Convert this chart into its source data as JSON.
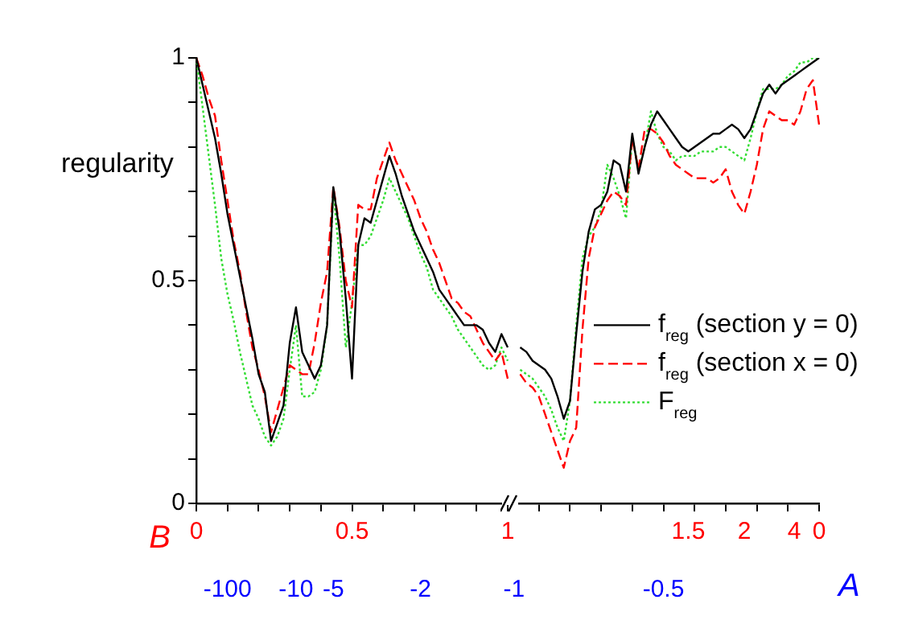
{
  "chart_data": {
    "type": "line",
    "ylabel": "regularity",
    "xlabel": "B",
    "x2label": "A",
    "ylim": [
      0,
      1
    ],
    "categories": [
      "0",
      null,
      null,
      null,
      null,
      "-100",
      null,
      null,
      null,
      null,
      null,
      null,
      null,
      null,
      null,
      null,
      "-10",
      null,
      null,
      null,
      null,
      null,
      "-5",
      null,
      null,
      "0.5",
      null,
      null,
      null,
      null,
      null,
      null,
      null,
      null,
      null,
      null,
      "-2",
      null,
      null,
      null,
      null,
      null,
      null,
      null,
      null,
      null,
      null,
      null,
      null,
      null,
      "1",
      "-1",
      null,
      null,
      null,
      null,
      null,
      null,
      null,
      null,
      null,
      null,
      null,
      null,
      null,
      null,
      null,
      null,
      null,
      null,
      null,
      null,
      null,
      null,
      null,
      "-0.5",
      null,
      null,
      null,
      "1.5",
      null,
      null,
      null,
      null,
      null,
      null,
      null,
      null,
      "2",
      null,
      null,
      null,
      null,
      null,
      null,
      null,
      "4",
      null,
      null,
      null,
      "0"
    ],
    "yticks": [
      0,
      {
        "value": 0.1,
        "label": null
      },
      {
        "value": 0.2,
        "label": null
      },
      {
        "value": 0.3,
        "label": null
      },
      {
        "value": 0.4,
        "label": null
      },
      0.5,
      {
        "value": 0.6,
        "label": null
      },
      {
        "value": 0.7,
        "label": null
      },
      {
        "value": 0.8,
        "label": null
      },
      {
        "value": 0.9,
        "label": null
      },
      1
    ],
    "legend": "bottom right",
    "marker": "none",
    "series": [
      {
        "name": "f$_{reg}$ (section y = 0)",
        "color": "#000000",
        "line_style": "solid",
        "values": [
          1,
          0.94,
          0.88,
          0.82,
          0.74,
          0.65,
          0.58,
          0.51,
          0.44,
          0.37,
          0.29,
          0.25,
          0.14,
          0.18,
          0.22,
          0.36,
          0.44,
          0.34,
          0.31,
          0.28,
          0.31,
          0.4,
          0.71,
          0.61,
          0.46,
          0.28,
          0.58,
          0.64,
          0.63,
          0.68,
          0.73,
          0.78,
          0.74,
          0.69,
          0.65,
          0.61,
          0.58,
          0.55,
          0.52,
          0.48,
          0.46,
          0.44,
          0.42,
          0.4,
          0.4,
          0.4,
          0.39,
          0.36,
          0.34,
          0.38,
          0.35,
          null,
          0.35,
          0.34,
          0.32,
          0.31,
          0.3,
          0.28,
          0.24,
          0.19,
          0.23,
          0.38,
          0.52,
          0.61,
          0.66,
          0.67,
          0.7,
          0.77,
          0.76,
          0.7,
          0.83,
          0.74,
          0.8,
          0.85,
          0.88,
          0.86,
          0.84,
          0.82,
          0.8,
          0.79,
          0.8,
          0.81,
          0.82,
          0.83,
          0.83,
          0.84,
          0.85,
          0.84,
          0.82,
          0.84,
          0.88,
          0.92,
          0.94,
          0.92,
          0.94,
          0.95,
          0.96,
          0.97,
          0.98,
          0.99,
          1.0
        ]
      },
      {
        "name": "f$_{reg}$ (section x = 0)",
        "color": "#ff0000",
        "line_style": "dashed",
        "values": [
          1,
          0.96,
          0.91,
          0.87,
          0.77,
          0.68,
          0.59,
          0.52,
          0.43,
          0.35,
          0.3,
          0.24,
          0.16,
          0.21,
          0.26,
          0.31,
          0.3,
          0.29,
          0.29,
          0.36,
          0.45,
          0.52,
          0.71,
          0.62,
          0.5,
          0.44,
          0.67,
          0.66,
          0.66,
          0.73,
          0.77,
          0.81,
          0.77,
          0.74,
          0.71,
          0.68,
          0.64,
          0.61,
          0.57,
          0.54,
          0.5,
          0.46,
          0.45,
          0.43,
          0.42,
          0.39,
          0.36,
          0.34,
          0.32,
          0.34,
          0.28,
          null,
          0.29,
          0.27,
          0.26,
          0.24,
          0.2,
          0.16,
          0.12,
          0.08,
          0.14,
          0.17,
          0.39,
          0.55,
          0.62,
          0.65,
          0.68,
          0.7,
          0.69,
          0.67,
          0.82,
          0.75,
          0.84,
          0.84,
          0.83,
          0.81,
          0.78,
          0.76,
          0.75,
          0.74,
          0.73,
          0.73,
          0.73,
          0.72,
          0.73,
          0.75,
          0.7,
          0.67,
          0.65,
          0.7,
          0.76,
          0.84,
          0.88,
          0.87,
          0.86,
          0.86,
          0.85,
          0.88,
          0.93,
          0.95,
          0.85
        ]
      },
      {
        "name": "F$_{reg}$",
        "color": "#33dd33",
        "line_style": "dotted",
        "values": [
          1,
          0.89,
          0.78,
          0.67,
          0.55,
          0.47,
          0.41,
          0.34,
          0.28,
          0.22,
          0.19,
          0.15,
          0.13,
          0.15,
          0.19,
          0.3,
          0.4,
          0.24,
          0.24,
          0.25,
          0.3,
          0.4,
          0.7,
          0.55,
          0.35,
          0.45,
          0.58,
          0.58,
          0.6,
          0.64,
          0.68,
          0.73,
          0.7,
          0.67,
          0.64,
          0.6,
          0.56,
          0.53,
          0.48,
          0.46,
          0.44,
          0.42,
          0.39,
          0.37,
          0.35,
          0.33,
          0.31,
          0.3,
          0.31,
          0.35,
          0.32,
          null,
          0.3,
          0.29,
          0.28,
          0.26,
          0.24,
          0.21,
          0.17,
          0.14,
          0.23,
          0.4,
          0.55,
          0.6,
          0.62,
          0.66,
          0.76,
          0.73,
          0.69,
          0.64,
          0.82,
          0.75,
          0.8,
          0.88,
          0.83,
          0.8,
          0.79,
          0.77,
          0.78,
          0.78,
          0.78,
          0.79,
          0.79,
          0.79,
          0.8,
          0.8,
          0.79,
          0.78,
          0.77,
          0.82,
          0.88,
          0.93,
          0.93,
          0.93,
          0.94,
          0.96,
          0.97,
          0.99,
          0.99,
          1.0,
          1.0
        ]
      }
    ]
  }
}
